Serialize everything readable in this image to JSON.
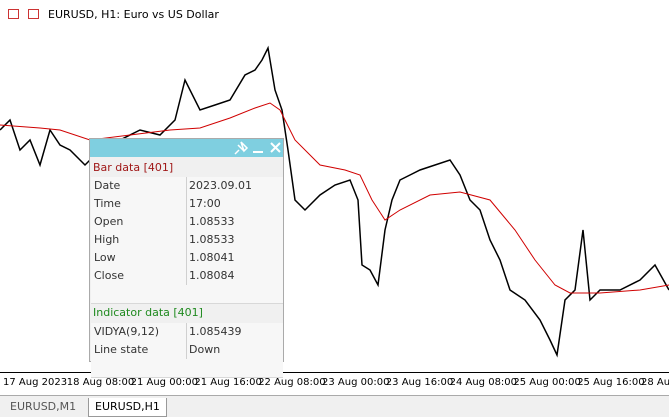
{
  "window": {
    "title": "EURUSD, H1:  Euro vs US Dollar"
  },
  "x_axis": {
    "labels": [
      "17 Aug 2023",
      "18 Aug 08:00",
      "21 Aug 00:00",
      "21 Aug 16:00",
      "22 Aug 08:00",
      "23 Aug 00:00",
      "23 Aug 16:00",
      "24 Aug 08:00",
      "25 Aug 00:00",
      "25 Aug 16:00",
      "28 Au"
    ]
  },
  "panel": {
    "bar_section": "Bar data [401]",
    "bar_rows": [
      [
        "Date",
        "2023.09.01"
      ],
      [
        "Time",
        "17:00"
      ],
      [
        "Open",
        "1.08533"
      ],
      [
        "High",
        "1.08533"
      ],
      [
        "Low",
        "1.08041"
      ],
      [
        "Close",
        "1.08084"
      ]
    ],
    "indicator_section": "Indicator data [401]",
    "indicator_rows": [
      [
        "VIDYA(9,12)",
        "1.085439"
      ],
      [
        "Line state",
        "Down"
      ]
    ]
  },
  "tabs": [
    "EURUSD,M1",
    "EURUSD,H1"
  ]
}
